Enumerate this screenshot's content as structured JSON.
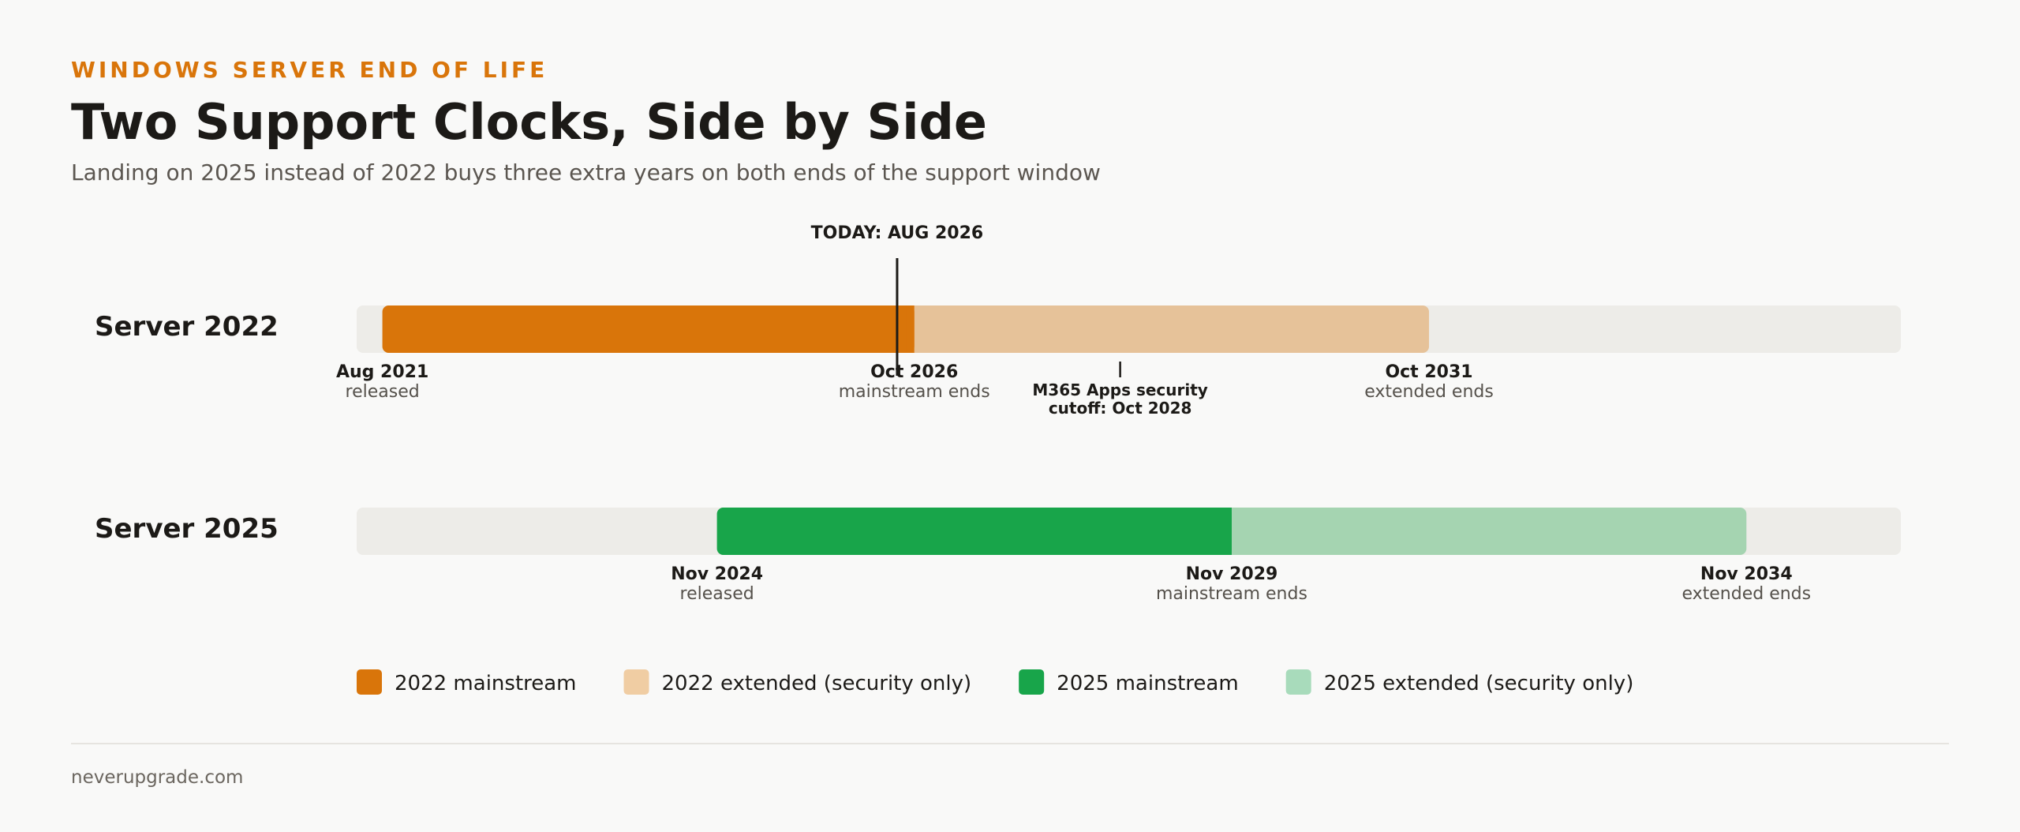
{
  "header": {
    "eyebrow": "WINDOWS SERVER END OF LIFE",
    "title": "Two Support Clocks, Side by Side",
    "subtitle": "Landing on 2025 instead of 2022 buys three extra years on both ends of the support window"
  },
  "chart_data": {
    "type": "timeline",
    "x_axis": {
      "type": "date",
      "range": [
        "2021-05",
        "2036-05"
      ]
    },
    "today": {
      "date": "2026-08",
      "label": "TODAY: AUG 2026"
    },
    "rows": [
      {
        "label": "Server 2022",
        "released": "2021-08",
        "mainstream_end": "2026-10",
        "extended_end": "2031-10",
        "mainstream_color": "#d9750a",
        "extended_color": "#e6c299",
        "milestones": [
          {
            "date": "2021-08",
            "label": "Aug 2021",
            "sub": "released"
          },
          {
            "date": "2026-10",
            "label": "Oct 2026",
            "sub": "mainstream ends"
          },
          {
            "date": "2031-10",
            "label": "Oct 2031",
            "sub": "extended ends"
          }
        ],
        "annotation": {
          "date": "2028-10",
          "lines": [
            "M365 Apps security",
            "cutoff: Oct 2028"
          ]
        }
      },
      {
        "label": "Server 2025",
        "released": "2024-11",
        "mainstream_end": "2029-11",
        "extended_end": "2034-11",
        "mainstream_color": "#18a54a",
        "extended_color": "#a5d4b1",
        "milestones": [
          {
            "date": "2024-11",
            "label": "Nov 2024",
            "sub": "released"
          },
          {
            "date": "2029-11",
            "label": "Nov 2029",
            "sub": "mainstream ends"
          },
          {
            "date": "2034-11",
            "label": "Nov 2034",
            "sub": "extended ends"
          }
        ]
      }
    ],
    "legend": [
      {
        "label": "2022 mainstream",
        "color": "#d9750a"
      },
      {
        "label": "2022 extended (security only)",
        "color": "#f0cda3"
      },
      {
        "label": "2025 mainstream",
        "color": "#18a54a"
      },
      {
        "label": "2025 extended (security only)",
        "color": "#a8dbbb"
      }
    ],
    "track_color": "#edece8"
  },
  "footer": {
    "site": "neverupgrade.com"
  }
}
